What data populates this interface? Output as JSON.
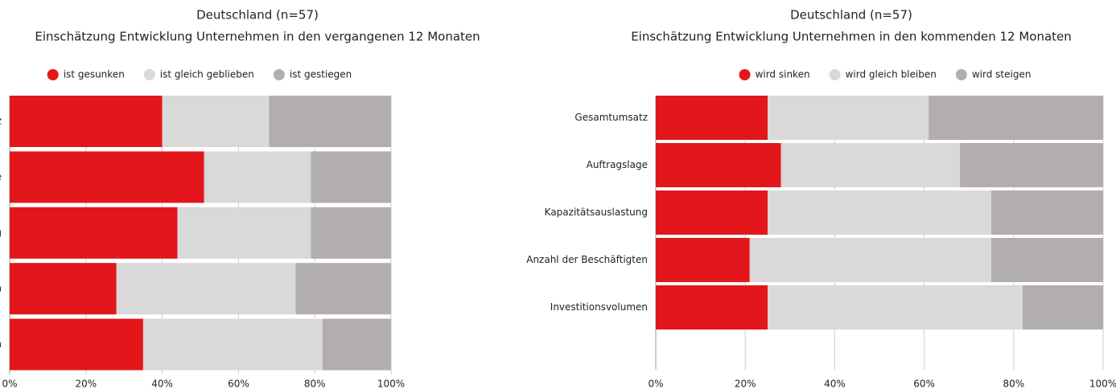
{
  "chart_data": [
    {
      "type": "bar",
      "orientation": "horizontal",
      "stacked": true,
      "subtitle": "Deutschland (n=57)",
      "title": "Einschätzung Entwicklung Unternehmen in den vergangenen 12 Monaten",
      "categories": [
        "Gesamtumsatz",
        "Auftragslage",
        "Kapazitätsauslastung",
        "Anzahl der Beschäftigten",
        "Investitionsvolumen"
      ],
      "series": [
        {
          "name": "ist gesunken",
          "color": "#e3171b",
          "values": [
            40,
            51,
            44,
            28,
            35
          ]
        },
        {
          "name": "ist gleich geblieben",
          "color": "#d9d9d9",
          "values": [
            28,
            28,
            35,
            47,
            47
          ]
        },
        {
          "name": "ist gestiegen",
          "color": "#b3aeae",
          "values": [
            32,
            21,
            21,
            25,
            18
          ]
        }
      ],
      "xlim": [
        0,
        100
      ],
      "xticks": [
        {
          "value": 0,
          "label": "0%"
        },
        {
          "value": 20,
          "label": "20%"
        },
        {
          "value": 40,
          "label": "40%"
        },
        {
          "value": 60,
          "label": "60%"
        },
        {
          "value": 80,
          "label": "80%"
        },
        {
          "value": 100,
          "label": "100%"
        }
      ],
      "grid": true,
      "legend": "top"
    },
    {
      "type": "bar",
      "orientation": "horizontal",
      "stacked": true,
      "subtitle": "Deutschland (n=57)",
      "title": "Einschätzung Entwicklung Unternehmen in den kommenden 12 Monaten",
      "categories": [
        "Gesamtumsatz",
        "Auftragslage",
        "Kapazitätsauslastung",
        "Anzahl der Beschäftigten",
        "Investitionsvolumen"
      ],
      "series": [
        {
          "name": "wird sinken",
          "color": "#e3171b",
          "values": [
            25,
            28,
            25,
            21,
            25
          ]
        },
        {
          "name": "wird gleich bleiben",
          "color": "#d9d9d9",
          "values": [
            36,
            40,
            50,
            54,
            57
          ]
        },
        {
          "name": "wird steigen",
          "color": "#b3aeae",
          "values": [
            39,
            32,
            25,
            25,
            18
          ]
        }
      ],
      "xlim": [
        0,
        100
      ],
      "xticks": [
        {
          "value": 0,
          "label": "0%"
        },
        {
          "value": 20,
          "label": "20%"
        },
        {
          "value": 40,
          "label": "40%"
        },
        {
          "value": 60,
          "label": "60%"
        },
        {
          "value": 80,
          "label": "80%"
        },
        {
          "value": 100,
          "label": "100%"
        }
      ],
      "grid": true,
      "legend": "top"
    }
  ]
}
